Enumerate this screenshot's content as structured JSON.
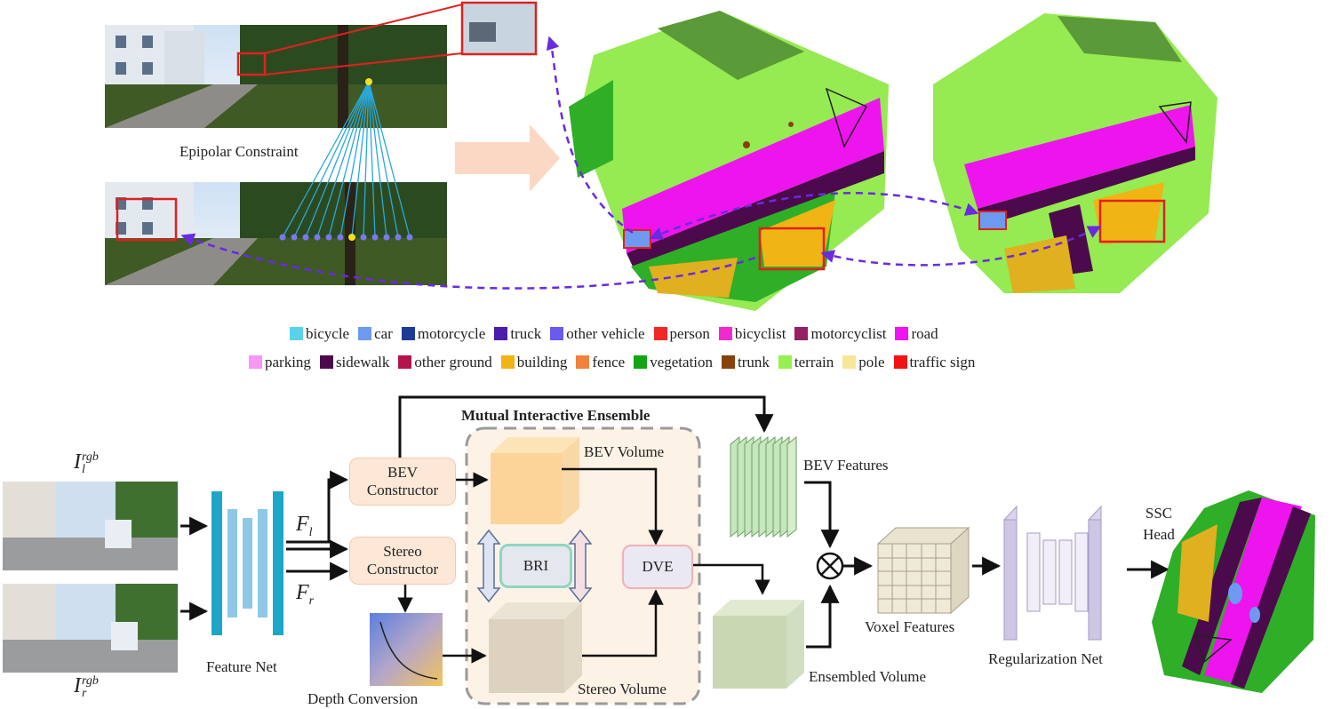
{
  "top": {
    "epipolar_label": "Epipolar Constraint"
  },
  "legend": {
    "row1": [
      {
        "label": "bicycle",
        "color": "#5bd2ea"
      },
      {
        "label": "car",
        "color": "#6d9af0"
      },
      {
        "label": "motorcycle",
        "color": "#1e3c96"
      },
      {
        "label": "truck",
        "color": "#4a1ea8"
      },
      {
        "label": "other vehicle",
        "color": "#6a5af0"
      },
      {
        "label": "person",
        "color": "#f02828"
      },
      {
        "label": "bicyclist",
        "color": "#f02ad0"
      },
      {
        "label": "motorcyclist",
        "color": "#962064"
      },
      {
        "label": "road",
        "color": "#f014f0"
      }
    ],
    "row2": [
      {
        "label": "parking",
        "color": "#f696f6"
      },
      {
        "label": "sidewalk",
        "color": "#4b0a4b"
      },
      {
        "label": "other ground",
        "color": "#b4144b"
      },
      {
        "label": "building",
        "color": "#f0b414"
      },
      {
        "label": "fence",
        "color": "#f0823c"
      },
      {
        "label": "vegetation",
        "color": "#14a514"
      },
      {
        "label": "trunk",
        "color": "#87410a"
      },
      {
        "label": "terrain",
        "color": "#96f050"
      },
      {
        "label": "pole",
        "color": "#f8e796"
      },
      {
        "label": "traffic sign",
        "color": "#f01414"
      }
    ]
  },
  "pipeline": {
    "input_left": {
      "base": "I",
      "sup": "rgb",
      "sub": "l"
    },
    "input_right": {
      "base": "I",
      "sup": "rgb",
      "sub": "r"
    },
    "feature_net": "Feature Net",
    "f_left": {
      "base": "F",
      "sub": "l"
    },
    "f_right": {
      "base": "F",
      "sub": "r"
    },
    "bev_constructor": "BEV Constructor",
    "stereo_constructor": "Stereo Constructor",
    "depth_conversion": "Depth Conversion",
    "mie_title": "Mutual Interactive Ensemble",
    "bev_volume": "BEV Volume",
    "stereo_volume": "Stereo Volume",
    "bri": "BRI",
    "dve": "DVE",
    "bev_features": "BEV Features",
    "ensembled_volume": "Ensembled Volume",
    "voxel_features": "Voxel Features",
    "regularization_net": "Regularization Net",
    "ssc_head": "SSC Head"
  }
}
